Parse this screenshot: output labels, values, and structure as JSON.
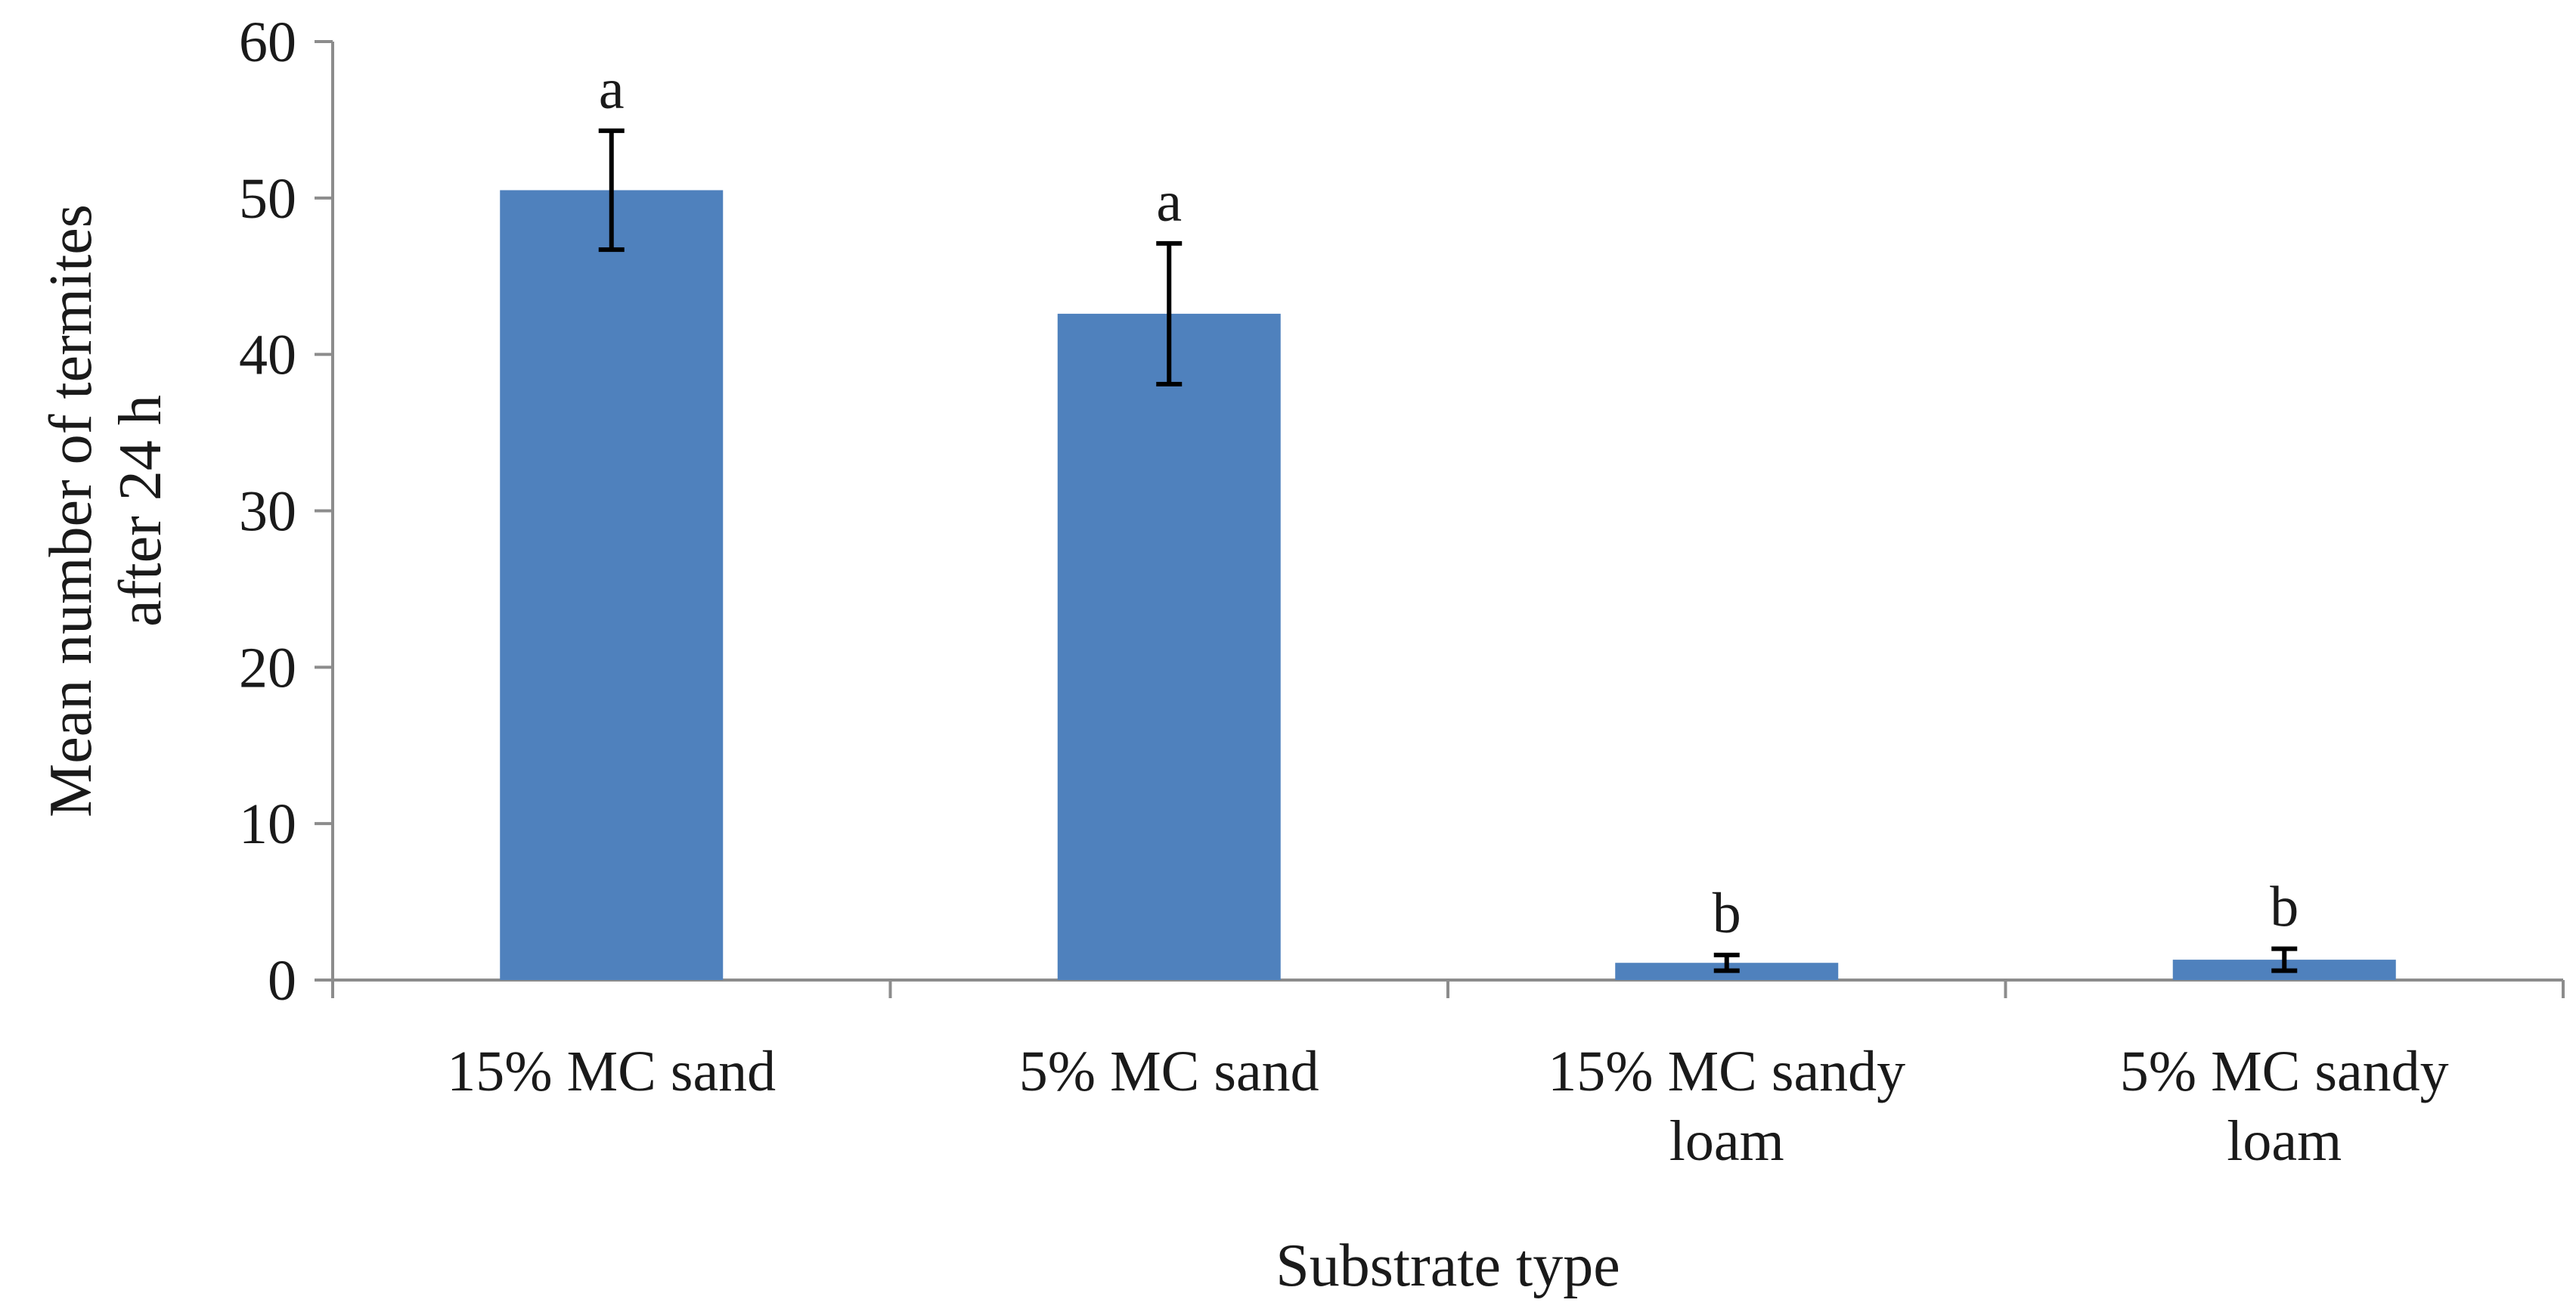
{
  "chart_data": {
    "type": "bar",
    "categories": [
      [
        "15% MC sand"
      ],
      [
        "5% MC sand"
      ],
      [
        "15% MC sandy",
        "loam"
      ],
      [
        "5% MC sandy",
        "loam"
      ]
    ],
    "series": [
      {
        "values": [
          50.5,
          42.6,
          1.1,
          1.3
        ],
        "error": [
          3.8,
          4.5,
          0.5,
          0.7
        ],
        "color": "#4f81bd"
      }
    ],
    "significance_letters": [
      "a",
      "a",
      "b",
      "b"
    ],
    "xlabel": "Substrate type",
    "ylabel": [
      "Mean number of termites",
      "after 24 h"
    ],
    "ylim": [
      0,
      60
    ],
    "yticks": [
      0,
      10,
      20,
      30,
      40,
      50,
      60
    ],
    "grid": false,
    "legend": "none"
  }
}
